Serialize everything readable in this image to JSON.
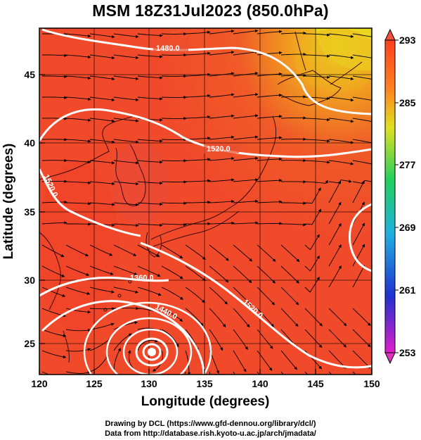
{
  "header": {
    "title": "MSM 18Z31Jul2023 (850.0hPa)"
  },
  "axes": {
    "xlabel": "Longitude (degrees)",
    "ylabel": "Latitude  (degrees)",
    "xticks": [
      "120",
      "125",
      "130",
      "135",
      "140",
      "145",
      "150"
    ],
    "yticks": [
      "25",
      "30",
      "35",
      "40",
      "45"
    ]
  },
  "colorbar": {
    "ticks": [
      "293",
      "285",
      "277",
      "269",
      "261",
      "253"
    ],
    "range": [
      253,
      293
    ],
    "colors": [
      "#e020c8",
      "#2030d0",
      "#20b0e0",
      "#20d060",
      "#e0e020",
      "#ff8020",
      "#ff4020"
    ]
  },
  "contours": {
    "labels": [
      "1480.0",
      "1520.0",
      "1520.0",
      "1360.0",
      "1440.0",
      "1520.0"
    ]
  },
  "footer": {
    "credit1": "Drawing by DCL (https://www.gfd-dennou.org/library/dcl/)",
    "credit2": "Data from http://database.rish.kyoto-u.ac.jp/arch/jmadata/"
  }
}
